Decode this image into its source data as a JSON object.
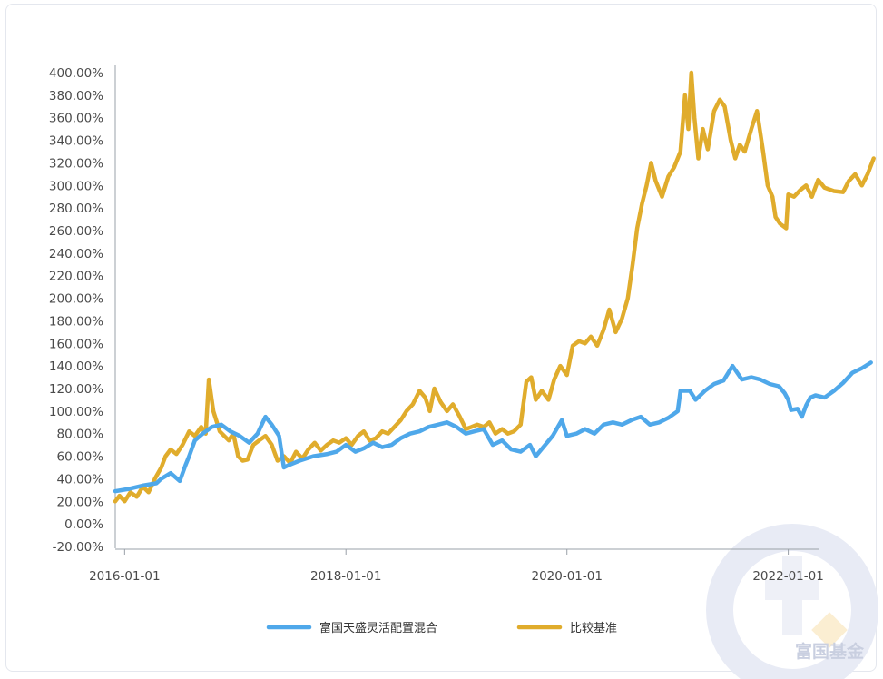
{
  "watermark": {
    "text": "富国基金"
  },
  "chart_data": {
    "type": "line",
    "title": "",
    "xlabel": "",
    "ylabel": "",
    "ylim": [
      -20,
      400
    ],
    "yticks": [
      "-20.00%",
      "0.00%",
      "20.00%",
      "40.00%",
      "60.00%",
      "80.00%",
      "100.00%",
      "120.00%",
      "140.00%",
      "160.00%",
      "180.00%",
      "200.00%",
      "220.00%",
      "240.00%",
      "260.00%",
      "280.00%",
      "300.00%",
      "320.00%",
      "340.00%",
      "360.00%",
      "380.00%",
      "400.00%"
    ],
    "xticks": [
      "2016-01-01",
      "2018-01-01",
      "2020-01-01",
      "2022-01-01"
    ],
    "xlim": [
      "2015-12-01",
      "2022-10-20"
    ],
    "grid": false,
    "legend": "bottom-center",
    "series": [
      {
        "name": "富国天盛灵活配置混合",
        "color": "#4fa8ea",
        "points": [
          [
            "2015-12-01",
            29
          ],
          [
            "2016-01-15",
            31
          ],
          [
            "2016-03-01",
            34
          ],
          [
            "2016-04-15",
            36
          ],
          [
            "2016-05-01",
            40
          ],
          [
            "2016-06-01",
            45
          ],
          [
            "2016-07-01",
            38
          ],
          [
            "2016-07-20",
            52
          ],
          [
            "2016-08-01",
            60
          ],
          [
            "2016-08-20",
            74
          ],
          [
            "2016-09-15",
            80
          ],
          [
            "2016-10-15",
            86
          ],
          [
            "2016-11-15",
            88
          ],
          [
            "2016-12-15",
            82
          ],
          [
            "2017-01-15",
            78
          ],
          [
            "2017-02-15",
            72
          ],
          [
            "2017-03-15",
            80
          ],
          [
            "2017-04-10",
            95
          ],
          [
            "2017-05-01",
            88
          ],
          [
            "2017-05-25",
            78
          ],
          [
            "2017-06-10",
            50
          ],
          [
            "2017-06-25",
            52
          ],
          [
            "2017-08-01",
            56
          ],
          [
            "2017-09-15",
            60
          ],
          [
            "2017-11-01",
            62
          ],
          [
            "2017-12-01",
            64
          ],
          [
            "2018-01-01",
            70
          ],
          [
            "2018-02-01",
            64
          ],
          [
            "2018-03-01",
            67
          ],
          [
            "2018-04-01",
            72
          ],
          [
            "2018-05-01",
            68
          ],
          [
            "2018-06-01",
            70
          ],
          [
            "2018-07-01",
            76
          ],
          [
            "2018-08-01",
            80
          ],
          [
            "2018-09-01",
            82
          ],
          [
            "2018-10-01",
            86
          ],
          [
            "2018-11-01",
            88
          ],
          [
            "2018-12-01",
            90
          ],
          [
            "2019-01-01",
            86
          ],
          [
            "2019-02-01",
            80
          ],
          [
            "2019-03-01",
            82
          ],
          [
            "2019-04-01",
            84
          ],
          [
            "2019-05-01",
            70
          ],
          [
            "2019-06-01",
            74
          ],
          [
            "2019-07-01",
            66
          ],
          [
            "2019-08-01",
            64
          ],
          [
            "2019-09-01",
            70
          ],
          [
            "2019-09-20",
            60
          ],
          [
            "2019-10-15",
            68
          ],
          [
            "2019-11-15",
            78
          ],
          [
            "2019-12-15",
            92
          ],
          [
            "2020-01-01",
            78
          ],
          [
            "2020-02-01",
            80
          ],
          [
            "2020-03-01",
            84
          ],
          [
            "2020-04-01",
            80
          ],
          [
            "2020-05-01",
            88
          ],
          [
            "2020-06-01",
            90
          ],
          [
            "2020-07-01",
            88
          ],
          [
            "2020-08-01",
            92
          ],
          [
            "2020-09-01",
            95
          ],
          [
            "2020-10-01",
            88
          ],
          [
            "2020-11-01",
            90
          ],
          [
            "2020-12-01",
            94
          ],
          [
            "2021-01-01",
            100
          ],
          [
            "2021-01-10",
            118
          ],
          [
            "2021-02-10",
            118
          ],
          [
            "2021-03-01",
            110
          ],
          [
            "2021-04-01",
            118
          ],
          [
            "2021-05-01",
            124
          ],
          [
            "2021-06-01",
            127
          ],
          [
            "2021-07-01",
            140
          ],
          [
            "2021-08-01",
            128
          ],
          [
            "2021-09-01",
            130
          ],
          [
            "2021-10-01",
            128
          ],
          [
            "2021-11-01",
            124
          ],
          [
            "2021-12-01",
            122
          ],
          [
            "2021-12-20",
            116
          ],
          [
            "2022-01-01",
            110
          ],
          [
            "2022-01-10",
            101
          ],
          [
            "2022-02-01",
            102
          ],
          [
            "2022-02-15",
            95
          ],
          [
            "2022-03-01",
            105
          ],
          [
            "2022-03-15",
            112
          ],
          [
            "2022-04-01",
            114
          ],
          [
            "2022-05-01",
            112
          ],
          [
            "2022-06-01",
            118
          ],
          [
            "2022-07-01",
            125
          ],
          [
            "2022-08-01",
            134
          ],
          [
            "2022-09-01",
            138
          ],
          [
            "2022-10-01",
            143
          ]
        ]
      },
      {
        "name": "比较基准",
        "color": "#e0ac2c",
        "points": [
          [
            "2015-12-01",
            20
          ],
          [
            "2015-12-15",
            25
          ],
          [
            "2016-01-01",
            20
          ],
          [
            "2016-01-20",
            28
          ],
          [
            "2016-02-10",
            24
          ],
          [
            "2016-03-01",
            33
          ],
          [
            "2016-03-20",
            28
          ],
          [
            "2016-04-10",
            40
          ],
          [
            "2016-05-01",
            50
          ],
          [
            "2016-05-15",
            60
          ],
          [
            "2016-06-01",
            66
          ],
          [
            "2016-06-20",
            62
          ],
          [
            "2016-07-10",
            70
          ],
          [
            "2016-08-01",
            82
          ],
          [
            "2016-08-20",
            78
          ],
          [
            "2016-09-10",
            86
          ],
          [
            "2016-09-25",
            80
          ],
          [
            "2016-10-05",
            128
          ],
          [
            "2016-10-20",
            100
          ],
          [
            "2016-11-10",
            82
          ],
          [
            "2016-11-25",
            78
          ],
          [
            "2016-12-10",
            74
          ],
          [
            "2016-12-25",
            80
          ],
          [
            "2017-01-10",
            60
          ],
          [
            "2017-01-25",
            56
          ],
          [
            "2017-02-10",
            57
          ],
          [
            "2017-03-01",
            70
          ],
          [
            "2017-03-20",
            74
          ],
          [
            "2017-04-10",
            78
          ],
          [
            "2017-05-01",
            70
          ],
          [
            "2017-05-20",
            56
          ],
          [
            "2017-06-10",
            60
          ],
          [
            "2017-07-01",
            54
          ],
          [
            "2017-07-20",
            64
          ],
          [
            "2017-08-10",
            58
          ],
          [
            "2017-08-30",
            66
          ],
          [
            "2017-09-20",
            72
          ],
          [
            "2017-10-10",
            65
          ],
          [
            "2017-10-30",
            70
          ],
          [
            "2017-11-20",
            74
          ],
          [
            "2017-12-10",
            72
          ],
          [
            "2018-01-01",
            76
          ],
          [
            "2018-01-20",
            70
          ],
          [
            "2018-02-10",
            78
          ],
          [
            "2018-03-01",
            82
          ],
          [
            "2018-03-20",
            74
          ],
          [
            "2018-04-10",
            76
          ],
          [
            "2018-05-01",
            82
          ],
          [
            "2018-05-20",
            80
          ],
          [
            "2018-06-10",
            86
          ],
          [
            "2018-07-01",
            92
          ],
          [
            "2018-07-20",
            100
          ],
          [
            "2018-08-10",
            106
          ],
          [
            "2018-09-01",
            118
          ],
          [
            "2018-09-20",
            112
          ],
          [
            "2018-10-05",
            100
          ],
          [
            "2018-10-20",
            120
          ],
          [
            "2018-11-10",
            108
          ],
          [
            "2018-12-01",
            100
          ],
          [
            "2018-12-20",
            106
          ],
          [
            "2019-01-10",
            96
          ],
          [
            "2019-02-01",
            84
          ],
          [
            "2019-02-20",
            86
          ],
          [
            "2019-03-10",
            88
          ],
          [
            "2019-04-01",
            86
          ],
          [
            "2019-04-20",
            90
          ],
          [
            "2019-05-10",
            80
          ],
          [
            "2019-06-01",
            84
          ],
          [
            "2019-06-20",
            80
          ],
          [
            "2019-07-10",
            82
          ],
          [
            "2019-08-01",
            88
          ],
          [
            "2019-08-20",
            126
          ],
          [
            "2019-09-05",
            130
          ],
          [
            "2019-09-20",
            110
          ],
          [
            "2019-10-10",
            118
          ],
          [
            "2019-11-01",
            110
          ],
          [
            "2019-11-20",
            128
          ],
          [
            "2019-12-10",
            140
          ],
          [
            "2020-01-01",
            132
          ],
          [
            "2020-01-20",
            158
          ],
          [
            "2020-02-10",
            162
          ],
          [
            "2020-03-01",
            160
          ],
          [
            "2020-03-20",
            166
          ],
          [
            "2020-04-10",
            158
          ],
          [
            "2020-05-01",
            172
          ],
          [
            "2020-05-20",
            190
          ],
          [
            "2020-06-10",
            170
          ],
          [
            "2020-07-01",
            182
          ],
          [
            "2020-07-20",
            200
          ],
          [
            "2020-08-05",
            230
          ],
          [
            "2020-08-20",
            262
          ],
          [
            "2020-09-05",
            284
          ],
          [
            "2020-09-20",
            300
          ],
          [
            "2020-10-05",
            320
          ],
          [
            "2020-10-20",
            304
          ],
          [
            "2020-11-10",
            290
          ],
          [
            "2020-12-01",
            308
          ],
          [
            "2020-12-20",
            316
          ],
          [
            "2021-01-10",
            330
          ],
          [
            "2021-01-25",
            380
          ],
          [
            "2021-02-05",
            350
          ],
          [
            "2021-02-15",
            400
          ],
          [
            "2021-02-25",
            360
          ],
          [
            "2021-03-10",
            324
          ],
          [
            "2021-03-25",
            350
          ],
          [
            "2021-04-10",
            332
          ],
          [
            "2021-05-01",
            366
          ],
          [
            "2021-05-20",
            376
          ],
          [
            "2021-06-05",
            370
          ],
          [
            "2021-06-25",
            340
          ],
          [
            "2021-07-10",
            324
          ],
          [
            "2021-07-25",
            336
          ],
          [
            "2021-08-10",
            330
          ],
          [
            "2021-09-01",
            350
          ],
          [
            "2021-09-20",
            366
          ],
          [
            "2021-10-10",
            330
          ],
          [
            "2021-10-25",
            300
          ],
          [
            "2021-11-10",
            290
          ],
          [
            "2021-11-20",
            272
          ],
          [
            "2021-12-05",
            266
          ],
          [
            "2021-12-25",
            262
          ],
          [
            "2022-01-01",
            292
          ],
          [
            "2022-01-20",
            290
          ],
          [
            "2022-02-10",
            296
          ],
          [
            "2022-03-01",
            300
          ],
          [
            "2022-03-20",
            290
          ],
          [
            "2022-04-10",
            305
          ],
          [
            "2022-05-01",
            298
          ],
          [
            "2022-06-01",
            295
          ],
          [
            "2022-07-01",
            294
          ],
          [
            "2022-07-20",
            304
          ],
          [
            "2022-08-10",
            310
          ],
          [
            "2022-09-01",
            300
          ],
          [
            "2022-09-20",
            310
          ],
          [
            "2022-10-10",
            324
          ]
        ]
      }
    ]
  }
}
